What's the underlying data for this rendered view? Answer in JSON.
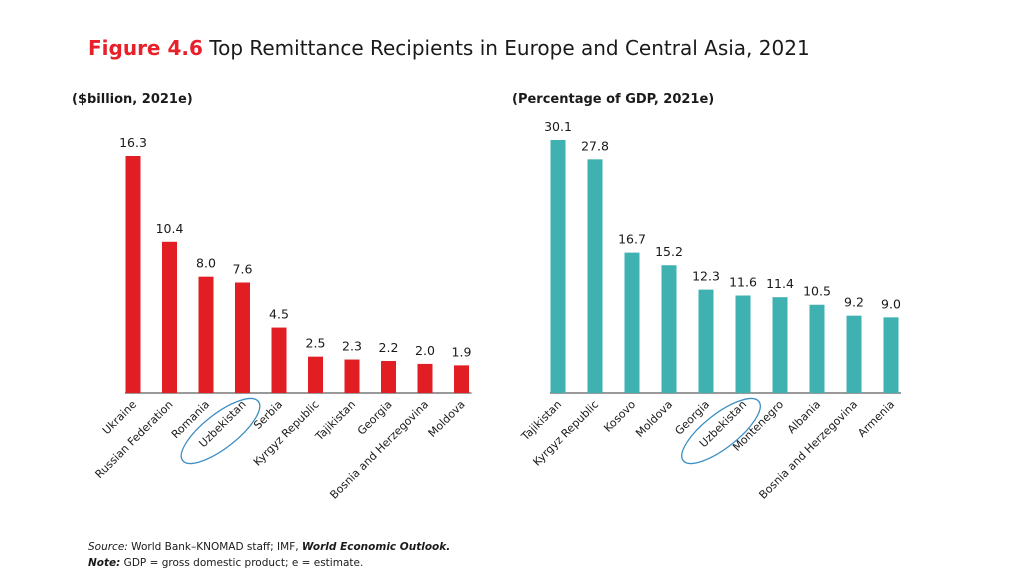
{
  "figure": {
    "label": "Figure 4.6",
    "title": "Top Remittance Recipients in Europe and Central Asia, 2021"
  },
  "footnotes": {
    "source_label": "Source:",
    "source_text": " World Bank–KNOMAD staff; IMF, ",
    "source_pub": "World Economic Outlook.",
    "note_label": "Note:",
    "note_text": " GDP = gross domestic product; e = estimate."
  },
  "colors": {
    "left_bars": "#e01e24",
    "right_bars": "#3fb1b0",
    "highlight_ellipse": "#3b8fc4",
    "title_accent": "#e8202a"
  },
  "chart_data": [
    {
      "type": "bar",
      "ylabel": "($billion, 2021e)",
      "categories": [
        "Ukraine",
        "Russian Federation",
        "Romania",
        "Uzbekistan",
        "Serbia",
        "Kyrgyz Republic",
        "Tajikistan",
        "Georgia",
        "Bosnia and Herzegovina",
        "Moldova"
      ],
      "values": [
        16.3,
        10.4,
        8.0,
        7.6,
        4.5,
        2.5,
        2.3,
        2.2,
        2.0,
        1.9
      ],
      "data_labels": [
        "16.3",
        "10.4",
        "8.0",
        "7.6",
        "4.5",
        "2.5",
        "2.3",
        "2.2",
        "2.0",
        "1.9"
      ],
      "highlight": "Uzbekistan",
      "ylim": [
        0,
        16.3
      ],
      "grid": false,
      "legend": "none"
    },
    {
      "type": "bar",
      "ylabel": "(Percentage of GDP, 2021e)",
      "categories": [
        "Tajikistan",
        "Kyrgyz Republic",
        "Kosovo",
        "Moldova",
        "Georgia",
        "Uzbekistan",
        "Montenegro",
        "Albania",
        "Bosnia and Herzegovina",
        "Armenia"
      ],
      "values": [
        30.1,
        27.8,
        16.7,
        15.2,
        12.3,
        11.6,
        11.4,
        10.5,
        9.2,
        9.0
      ],
      "data_labels": [
        "30.1",
        "27.8",
        "16.7",
        "15.2",
        "12.3",
        "11.6",
        "11.4",
        "10.5",
        "9.2",
        "9.0"
      ],
      "highlight": "Uzbekistan",
      "ylim": [
        0,
        30.1
      ],
      "grid": false,
      "legend": "none"
    }
  ]
}
